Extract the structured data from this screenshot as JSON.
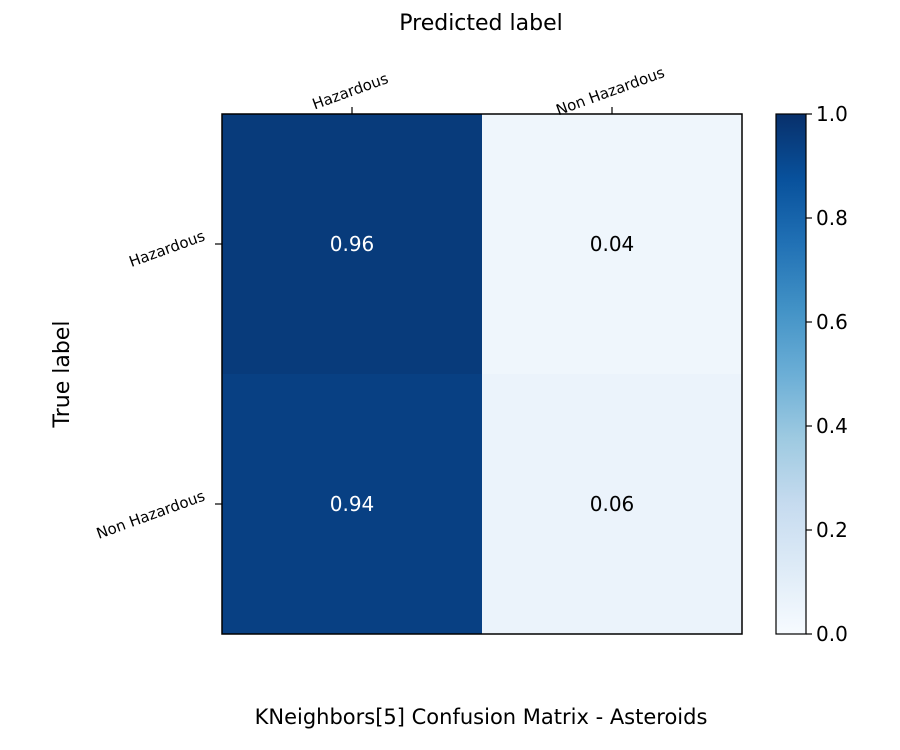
{
  "chart_data": {
    "type": "heatmap",
    "title": "KNeighbors[5]  Confusion Matrix - Asteroids",
    "xlabel": "Predicted label",
    "ylabel": "True label",
    "x_categories": [
      "Hazardous",
      "Non Hazardous"
    ],
    "y_categories": [
      "Hazardous",
      "Non Hazardous"
    ],
    "values": [
      [
        0.96,
        0.04
      ],
      [
        0.94,
        0.06
      ]
    ],
    "value_labels": [
      [
        "0.96",
        "0.04"
      ],
      [
        "0.94",
        "0.06"
      ]
    ],
    "colorbar": {
      "range": [
        0.0,
        1.0
      ],
      "ticks": [
        0.0,
        0.2,
        0.4,
        0.6,
        0.8,
        1.0
      ],
      "tick_labels": [
        "0.0",
        "0.2",
        "0.4",
        "0.6",
        "0.8",
        "1.0"
      ],
      "colormap": "Blues",
      "colors": [
        "#f7fbff",
        "#deebf7",
        "#c6dbef",
        "#9ecae1",
        "#6baed6",
        "#4292c6",
        "#2171b5",
        "#08519c",
        "#08306b"
      ]
    },
    "grid": false,
    "x_tick_position": "top",
    "colorbar_placement": "right"
  }
}
